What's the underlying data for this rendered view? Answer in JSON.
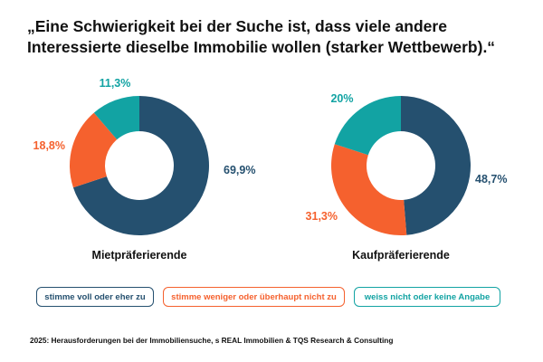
{
  "title": "„Eine Schwierigkeit bei der Suche ist, dass viele andere Interessierte dieselbe Immobilie wollen (starker Wettbewerb).“",
  "legend": [
    {
      "label": "stimme voll oder eher zu",
      "color": "#25506f"
    },
    {
      "label": "stimme weniger oder überhaupt nicht zu",
      "color": "#f5612e"
    },
    {
      "label": "weiss nicht oder keine Angabe",
      "color": "#12a3a3"
    }
  ],
  "source": "2025: Herausforderungen bei der Immobiliensuche, s REAL Immobilien & TQS Research & Consulting",
  "chart_data": [
    {
      "type": "pie",
      "donut": true,
      "title": "Mietpräferierende",
      "categories": [
        "stimme voll oder eher zu",
        "stimme weniger oder überhaupt nicht zu",
        "weiss nicht oder keine Angabe"
      ],
      "values": [
        69.9,
        18.8,
        11.3
      ],
      "labels": [
        "69,9%",
        "18,8%",
        "11,3%"
      ]
    },
    {
      "type": "pie",
      "donut": true,
      "title": "Kaufpräferierende",
      "categories": [
        "stimme voll oder eher zu",
        "stimme weniger oder überhaupt nicht zu",
        "weiss nicht oder keine Angabe"
      ],
      "values": [
        48.7,
        31.3,
        20
      ],
      "labels": [
        "48,7%",
        "31,3%",
        "20%"
      ]
    }
  ]
}
